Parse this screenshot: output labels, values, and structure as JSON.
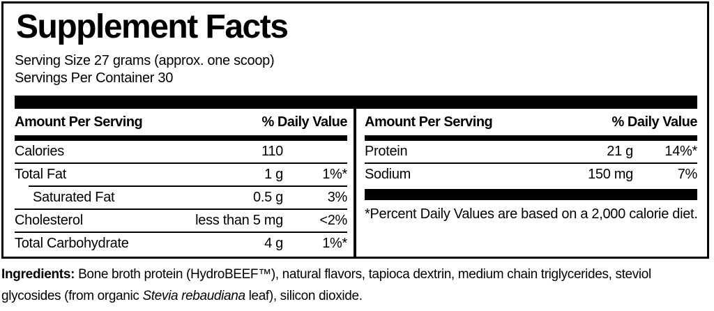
{
  "title": "Supplement Facts",
  "serving": {
    "size": "Serving Size 27 grams (approx. one scoop)",
    "per_container": "Servings Per Container 30"
  },
  "table": {
    "left": {
      "header": {
        "amount": "Amount Per Serving",
        "dv": "% Daily Value"
      },
      "rows": [
        {
          "name": "Calories",
          "amount": "110",
          "dv": ""
        },
        {
          "name": "Total Fat",
          "amount": "1 g",
          "dv": "1%*"
        },
        {
          "name": "Saturated Fat",
          "amount": "0.5 g",
          "dv": "3%"
        },
        {
          "name": "Cholesterol",
          "amount": "less than 5 mg",
          "dv": "<2%"
        },
        {
          "name": "Total Carbohydrate",
          "amount": "4 g",
          "dv": "1%*"
        }
      ]
    },
    "right": {
      "header": {
        "amount": "Amount Per Serving",
        "dv": "% Daily Value"
      },
      "rows": [
        {
          "name": "Protein",
          "amount": "21 g",
          "dv": "14%*"
        },
        {
          "name": "Sodium",
          "amount": "150 mg",
          "dv": "7%"
        }
      ],
      "footnote": "*Percent Daily Values are based on a 2,000 calorie diet."
    }
  },
  "ingredients": {
    "label": "Ingredients:",
    "line1_rest": " Bone broth protein (HydroBEEF™), natural flavors, tapioca dextrin, medium chain triglycerides, steviol",
    "line2_pre": "glycosides (from organic ",
    "species": "Stevia rebaudiana",
    "line2_post": " leaf), silicon dioxide."
  },
  "colors": {
    "ink": "#000000",
    "background": "#ffffff"
  }
}
